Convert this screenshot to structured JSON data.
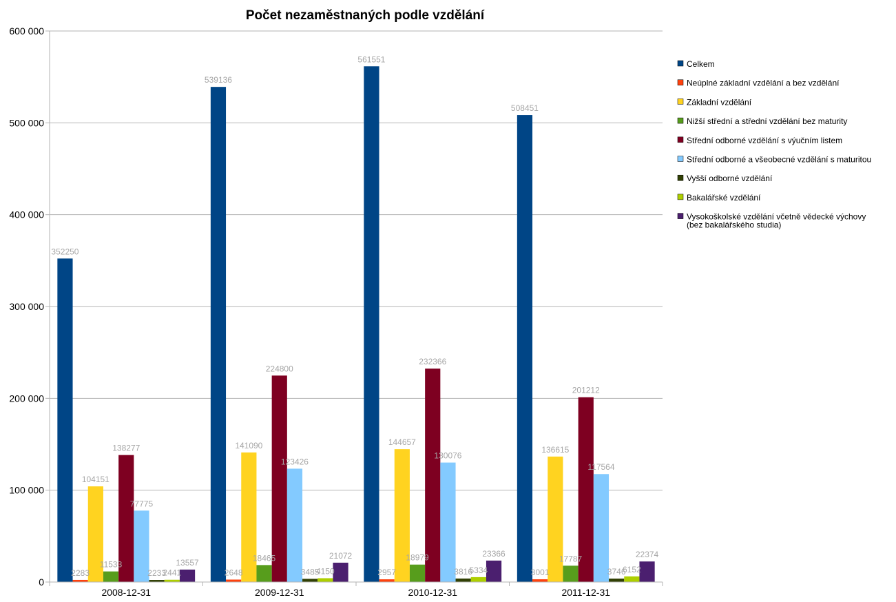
{
  "chart_data": {
    "type": "bar",
    "title": "Počet nezaměstnaných podle vzdělání",
    "xlabel": "",
    "ylabel": "",
    "categories": [
      "2008-12-31",
      "2009-12-31",
      "2010-12-31",
      "2011-12-31"
    ],
    "ylim": [
      0,
      600000
    ],
    "yticks": [
      0,
      100000,
      200000,
      300000,
      400000,
      500000,
      600000
    ],
    "ytick_labels": [
      "0",
      "100 000",
      "200 000",
      "300 000",
      "400 000",
      "500 000",
      "600 000"
    ],
    "grid": true,
    "legend_position": "right",
    "series": [
      {
        "name": "Celkem",
        "color": "#004586",
        "values": [
          352250,
          539136,
          561551,
          508451
        ]
      },
      {
        "name": "Neúplné základní vzdělání a bez vzdělání",
        "color": "#ff420e",
        "values": [
          2283,
          2648,
          2957,
          3001
        ]
      },
      {
        "name": "Základní vzdělání",
        "color": "#ffd320",
        "values": [
          104151,
          141090,
          144657,
          136615
        ]
      },
      {
        "name": "Nižší střední a střední vzdělání bez maturity",
        "color": "#579d1c",
        "values": [
          11533,
          18465,
          18979,
          17787
        ]
      },
      {
        "name": "Střední odborné vzdělání s výučním listem",
        "color": "#7e0021",
        "values": [
          138277,
          224800,
          232366,
          201212
        ]
      },
      {
        "name": "Střední odborné a všeobecné vzdělání s maturitou",
        "color": "#83caff",
        "values": [
          77775,
          123426,
          130076,
          117564
        ]
      },
      {
        "name": "Vyšší odborné vzdělání",
        "color": "#314004",
        "values": [
          2233,
          3485,
          3816,
          3746
        ]
      },
      {
        "name": "Bakalářské vzdělání",
        "color": "#aecf00",
        "values": [
          2441,
          4150,
          5334,
          6152
        ]
      },
      {
        "name": "Vysokoškolské vzdělání včetně vědecké výchovy (bez bakalářského studia)",
        "name_lines": [
          "Vysokoškolské vzdělání včetně vědecké výchovy",
          "(bez bakalářského studia)"
        ],
        "color": "#4b1f6f",
        "values": [
          13557,
          21072,
          23366,
          22374
        ]
      }
    ]
  }
}
